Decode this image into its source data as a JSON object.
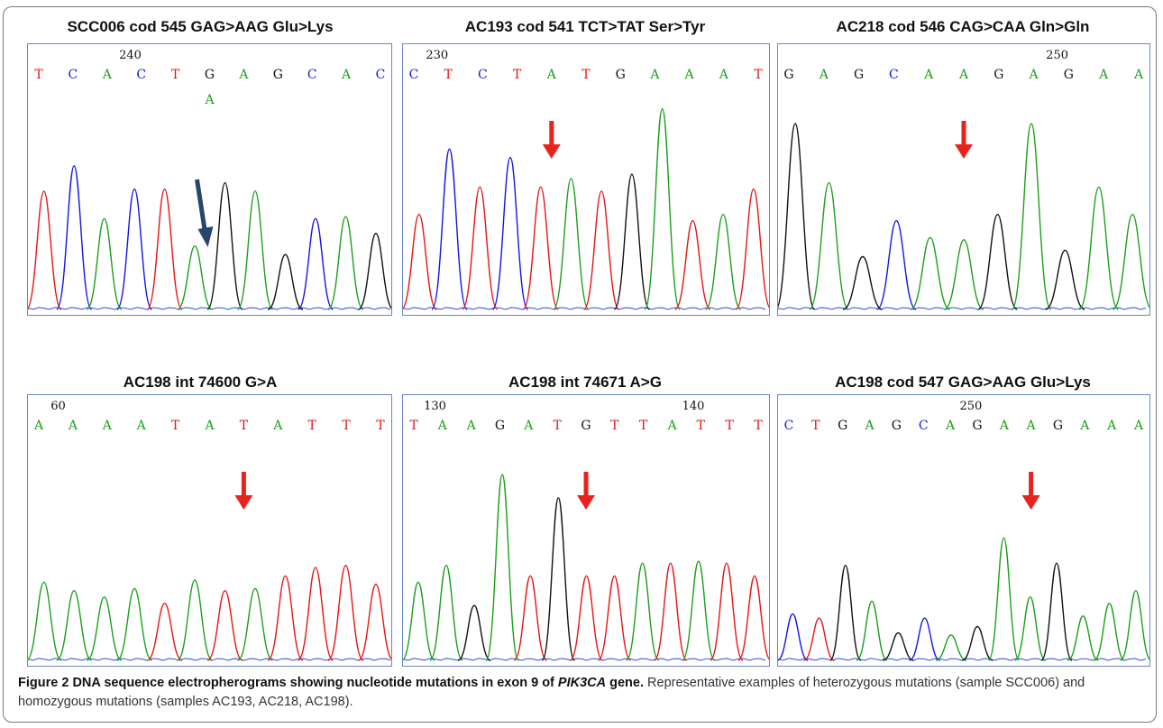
{
  "panels": [
    {
      "title": "SCC006 cod 545 GAG>AAG Glu>Lys",
      "numbers": [
        {
          "text": "240",
          "after_base": 2
        }
      ],
      "bases": [
        "T",
        "C",
        "A",
        "C",
        "T",
        "G",
        "A",
        "G",
        "C",
        "A",
        "C"
      ],
      "secondary_call": {
        "text": "A",
        "base_index": 5
      },
      "arrow": {
        "color": "#26466e",
        "style": "diagonal",
        "base_index": 5
      },
      "trace_peaks": [
        {
          "base": "T",
          "height": 0.56
        },
        {
          "base": "C",
          "height": 0.68
        },
        {
          "base": "A",
          "height": 0.43
        },
        {
          "base": "C",
          "height": 0.57
        },
        {
          "base": "T",
          "height": 0.57
        },
        {
          "base": "A",
          "height": 0.3
        },
        {
          "base": "G",
          "height": 0.6
        },
        {
          "base": "A",
          "height": 0.56
        },
        {
          "base": "G",
          "height": 0.26
        },
        {
          "base": "C",
          "height": 0.43
        },
        {
          "base": "A",
          "height": 0.44
        },
        {
          "base": "G",
          "height": 0.36
        }
      ]
    },
    {
      "title": "AC193 cod 541 TCT>TAT Ser>Tyr",
      "numbers": [
        {
          "text": "230",
          "after_base": 0
        }
      ],
      "bases": [
        "C",
        "T",
        "C",
        "T",
        "A",
        "T",
        "G",
        "A",
        "A",
        "A",
        "T"
      ],
      "arrow": {
        "color": "#e8231e",
        "style": "vertical",
        "base_index": 4
      },
      "trace_peaks": [
        {
          "base": "T",
          "height": 0.45
        },
        {
          "base": "C",
          "height": 0.76
        },
        {
          "base": "T",
          "height": 0.58
        },
        {
          "base": "C",
          "height": 0.72
        },
        {
          "base": "T",
          "height": 0.58
        },
        {
          "base": "A",
          "height": 0.62
        },
        {
          "base": "T",
          "height": 0.56
        },
        {
          "base": "G",
          "height": 0.64
        },
        {
          "base": "A",
          "height": 0.95
        },
        {
          "base": "T",
          "height": 0.42
        },
        {
          "base": "A",
          "height": 0.45
        },
        {
          "base": "T",
          "height": 0.57
        }
      ]
    },
    {
      "title": "AC218 cod 546 CAG>CAA Gln>Gln",
      "numbers": [
        {
          "text": "250",
          "after_base": 7
        }
      ],
      "bases": [
        "G",
        "A",
        "G",
        "C",
        "A",
        "A",
        "G",
        "A",
        "G",
        "A",
        "A"
      ],
      "arrow": {
        "color": "#e8231e",
        "style": "vertical",
        "base_index": 5
      },
      "trace_peaks": [
        {
          "base": "G",
          "height": 0.88
        },
        {
          "base": "A",
          "height": 0.6
        },
        {
          "base": "G",
          "height": 0.25
        },
        {
          "base": "C",
          "height": 0.42
        },
        {
          "base": "A",
          "height": 0.34
        },
        {
          "base": "A",
          "height": 0.33
        },
        {
          "base": "G",
          "height": 0.45
        },
        {
          "base": "A",
          "height": 0.88
        },
        {
          "base": "G",
          "height": 0.28
        },
        {
          "base": "A",
          "height": 0.58
        },
        {
          "base": "A",
          "height": 0.45
        }
      ]
    },
    {
      "title": "AC198  int  74600 G>A",
      "numbers": [
        {
          "text": "60",
          "after_base": 0
        }
      ],
      "bases": [
        "A",
        "A",
        "A",
        "A",
        "T",
        "A",
        "T",
        "A",
        "T",
        "T",
        "T"
      ],
      "arrow": {
        "color": "#e8231e",
        "style": "vertical",
        "base_index": 6
      },
      "trace_peaks": [
        {
          "base": "A",
          "height": 0.37
        },
        {
          "base": "A",
          "height": 0.33
        },
        {
          "base": "A",
          "height": 0.3
        },
        {
          "base": "A",
          "height": 0.34
        },
        {
          "base": "T",
          "height": 0.27
        },
        {
          "base": "A",
          "height": 0.38
        },
        {
          "base": "T",
          "height": 0.33
        },
        {
          "base": "A",
          "height": 0.34
        },
        {
          "base": "T",
          "height": 0.4
        },
        {
          "base": "T",
          "height": 0.44
        },
        {
          "base": "T",
          "height": 0.45
        },
        {
          "base": "T",
          "height": 0.36
        }
      ]
    },
    {
      "title": "AC198  int  74671 A>G",
      "numbers": [
        {
          "text": "130",
          "after_base": 0
        },
        {
          "text": "140",
          "after_base": 9
        }
      ],
      "bases": [
        "T",
        "A",
        "A",
        "G",
        "A",
        "T",
        "G",
        "T",
        "T",
        "A",
        "T",
        "T",
        "T"
      ],
      "arrow": {
        "color": "#e8231e",
        "style": "vertical",
        "base_index": 6
      },
      "trace_peaks": [
        {
          "base": "A",
          "height": 0.37
        },
        {
          "base": "A",
          "height": 0.45
        },
        {
          "base": "G",
          "height": 0.26
        },
        {
          "base": "A",
          "height": 0.88
        },
        {
          "base": "T",
          "height": 0.4
        },
        {
          "base": "G",
          "height": 0.77
        },
        {
          "base": "T",
          "height": 0.4
        },
        {
          "base": "T",
          "height": 0.4
        },
        {
          "base": "A",
          "height": 0.46
        },
        {
          "base": "T",
          "height": 0.46
        },
        {
          "base": "A",
          "height": 0.47
        },
        {
          "base": "T",
          "height": 0.46
        },
        {
          "base": "T",
          "height": 0.4
        }
      ]
    },
    {
      "title": "AC198  cod 547 GAG>AAG Glu>Lys",
      "numbers": [
        {
          "text": "250",
          "after_base": 6
        }
      ],
      "bases": [
        "C",
        "T",
        "G",
        "A",
        "G",
        "C",
        "A",
        "G",
        "A",
        "A",
        "G",
        "A",
        "A",
        "A"
      ],
      "arrow": {
        "color": "#e8231e",
        "style": "vertical",
        "base_index": 9
      },
      "trace_peaks": [
        {
          "base": "C",
          "height": 0.22
        },
        {
          "base": "T",
          "height": 0.2
        },
        {
          "base": "G",
          "height": 0.45
        },
        {
          "base": "A",
          "height": 0.28
        },
        {
          "base": "G",
          "height": 0.13
        },
        {
          "base": "C",
          "height": 0.2
        },
        {
          "base": "A",
          "height": 0.12
        },
        {
          "base": "G",
          "height": 0.16
        },
        {
          "base": "A",
          "height": 0.58
        },
        {
          "base": "A",
          "height": 0.3
        },
        {
          "base": "G",
          "height": 0.46
        },
        {
          "base": "A",
          "height": 0.21
        },
        {
          "base": "A",
          "height": 0.27
        },
        {
          "base": "A",
          "height": 0.33
        }
      ]
    }
  ],
  "base_colors": {
    "A": "#1aa01a",
    "C": "#1414e6",
    "G": "#111111",
    "T": "#e61414"
  },
  "caption": {
    "label": "Figure 2",
    "title_part": "DNA sequence electropherograms showing nucleotide mutations in exon 9 of",
    "gene": "PIK3CA",
    "gene_suffix": "gene.",
    "body": "Representative examples of heterozygous mutations (sample SCC006) and homozygous mutations (samples AC193, AC218, AC198)."
  }
}
